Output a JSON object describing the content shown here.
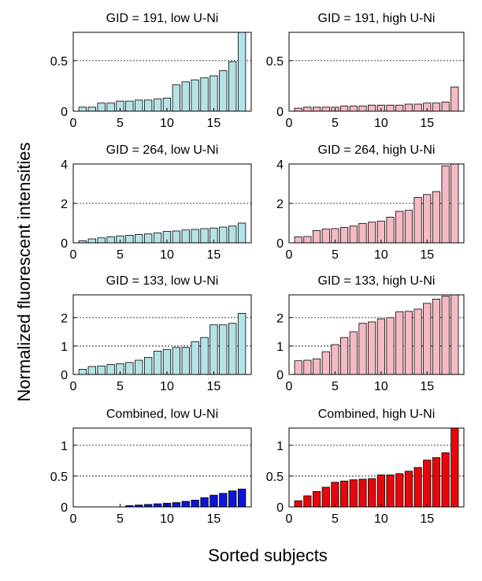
{
  "figure": {
    "ylabel": "Normalized fluorescent intensities",
    "xlabel": "Sorted subjects"
  },
  "chart_data": [
    {
      "type": "bar",
      "title": "GID = 191, low U-Ni",
      "color": "#b3e3e6",
      "x": [
        1,
        2,
        3,
        4,
        5,
        6,
        7,
        8,
        9,
        10,
        11,
        12,
        13,
        14,
        15,
        16,
        17,
        18
      ],
      "values": [
        0.04,
        0.04,
        0.08,
        0.08,
        0.1,
        0.1,
        0.11,
        0.11,
        0.12,
        0.13,
        0.26,
        0.29,
        0.31,
        0.33,
        0.35,
        0.4,
        0.49,
        0.78
      ],
      "xlim": [
        0,
        19
      ],
      "ylim": [
        0,
        0.78
      ],
      "xticks": [
        0,
        5,
        10,
        15
      ],
      "yticks": [
        0,
        0.5
      ],
      "ytick_labels": [
        "0",
        "0.5"
      ],
      "grid_y": [
        0.5
      ]
    },
    {
      "type": "bar",
      "title": "GID = 191, high U-Ni",
      "color": "#f7b9c3",
      "x": [
        1,
        2,
        3,
        4,
        5,
        6,
        7,
        8,
        9,
        10,
        11,
        12,
        13,
        14,
        15,
        16,
        17,
        18
      ],
      "values": [
        0.03,
        0.04,
        0.04,
        0.04,
        0.04,
        0.05,
        0.05,
        0.05,
        0.06,
        0.06,
        0.06,
        0.06,
        0.07,
        0.07,
        0.08,
        0.08,
        0.09,
        0.24
      ],
      "xlim": [
        0,
        19
      ],
      "ylim": [
        0,
        0.78
      ],
      "xticks": [
        0,
        5,
        10,
        15
      ],
      "yticks": [
        0,
        0.5
      ],
      "ytick_labels": [
        "0",
        "0.5"
      ],
      "grid_y": [
        0.5
      ]
    },
    {
      "type": "bar",
      "title": "GID = 264, low U-Ni",
      "color": "#b3e3e6",
      "x": [
        1,
        2,
        3,
        4,
        5,
        6,
        7,
        8,
        9,
        10,
        11,
        12,
        13,
        14,
        15,
        16,
        17,
        18
      ],
      "values": [
        0.1,
        0.2,
        0.25,
        0.3,
        0.35,
        0.38,
        0.42,
        0.45,
        0.5,
        0.58,
        0.6,
        0.65,
        0.68,
        0.72,
        0.75,
        0.8,
        0.85,
        1.0
      ],
      "xlim": [
        0,
        19
      ],
      "ylim": [
        0,
        4
      ],
      "xticks": [
        0,
        5,
        10,
        15
      ],
      "yticks": [
        0,
        2,
        4
      ],
      "ytick_labels": [
        "0",
        "2",
        "4"
      ],
      "grid_y": [
        2,
        4
      ]
    },
    {
      "type": "bar",
      "title": "GID = 264, high U-Ni",
      "color": "#f7b9c3",
      "x": [
        1,
        2,
        3,
        4,
        5,
        6,
        7,
        8,
        9,
        10,
        11,
        12,
        13,
        14,
        15,
        16,
        17,
        18
      ],
      "values": [
        0.3,
        0.32,
        0.62,
        0.7,
        0.72,
        0.78,
        0.85,
        0.98,
        1.05,
        1.1,
        1.3,
        1.6,
        1.65,
        2.3,
        2.45,
        2.6,
        3.9,
        4.1
      ],
      "xlim": [
        0,
        19
      ],
      "ylim": [
        0,
        4
      ],
      "xticks": [
        0,
        5,
        10,
        15
      ],
      "yticks": [
        0,
        2,
        4
      ],
      "ytick_labels": [
        "0",
        "2",
        "4"
      ],
      "grid_y": [
        2,
        4
      ]
    },
    {
      "type": "bar",
      "title": "GID = 133, low U-Ni",
      "color": "#b3e3e6",
      "x": [
        1,
        2,
        3,
        4,
        5,
        6,
        7,
        8,
        9,
        10,
        11,
        12,
        13,
        14,
        15,
        16,
        17,
        18
      ],
      "values": [
        0.18,
        0.28,
        0.3,
        0.35,
        0.38,
        0.42,
        0.5,
        0.6,
        0.82,
        0.88,
        0.95,
        0.95,
        1.15,
        1.3,
        1.75,
        1.75,
        1.8,
        2.15
      ],
      "xlim": [
        0,
        19
      ],
      "ylim": [
        0,
        2.8
      ],
      "xticks": [
        0,
        5,
        10,
        15
      ],
      "yticks": [
        0,
        1,
        2
      ],
      "ytick_labels": [
        "0",
        "1",
        "2"
      ],
      "grid_y": [
        1,
        2
      ]
    },
    {
      "type": "bar",
      "title": "GID = 133, high U-Ni",
      "color": "#f7b9c3",
      "x": [
        1,
        2,
        3,
        4,
        5,
        6,
        7,
        8,
        9,
        10,
        11,
        12,
        13,
        14,
        15,
        16,
        17,
        18
      ],
      "values": [
        0.48,
        0.5,
        0.55,
        0.8,
        1.05,
        1.3,
        1.5,
        1.8,
        1.85,
        1.95,
        2.0,
        2.2,
        2.22,
        2.3,
        2.5,
        2.65,
        2.75,
        2.85
      ],
      "xlim": [
        0,
        19
      ],
      "ylim": [
        0,
        2.8
      ],
      "xticks": [
        0,
        5,
        10,
        15
      ],
      "yticks": [
        0,
        1,
        2
      ],
      "ytick_labels": [
        "0",
        "1",
        "2"
      ],
      "grid_y": [
        1,
        2
      ]
    },
    {
      "type": "bar",
      "title": "Combined, low U-Ni",
      "color": "#0a15d8",
      "x": [
        1,
        2,
        3,
        4,
        5,
        6,
        7,
        8,
        9,
        10,
        11,
        12,
        13,
        14,
        15,
        16,
        17,
        18
      ],
      "values": [
        0,
        0,
        0,
        0,
        0,
        0.02,
        0.03,
        0.04,
        0.05,
        0.06,
        0.07,
        0.09,
        0.11,
        0.15,
        0.19,
        0.22,
        0.26,
        0.29
      ],
      "xlim": [
        0,
        19
      ],
      "ylim": [
        0,
        1.28
      ],
      "xticks": [
        0,
        5,
        10,
        15
      ],
      "yticks": [
        0,
        0.5,
        1
      ],
      "ytick_labels": [
        "0",
        "0.5",
        "1"
      ],
      "grid_y": [
        0.5,
        1
      ]
    },
    {
      "type": "bar",
      "title": "Combined, high U-Ni",
      "color": "#e8060b",
      "x": [
        1,
        2,
        3,
        4,
        5,
        6,
        7,
        8,
        9,
        10,
        11,
        12,
        13,
        14,
        15,
        16,
        17,
        18
      ],
      "values": [
        0.1,
        0.18,
        0.25,
        0.32,
        0.4,
        0.42,
        0.44,
        0.45,
        0.46,
        0.52,
        0.52,
        0.54,
        0.58,
        0.64,
        0.76,
        0.8,
        0.88,
        1.3
      ],
      "xlim": [
        0,
        19
      ],
      "ylim": [
        0,
        1.28
      ],
      "xticks": [
        0,
        5,
        10,
        15
      ],
      "yticks": [
        0,
        0.5,
        1
      ],
      "ytick_labels": [
        "0",
        "0.5",
        "1"
      ],
      "grid_y": [
        0.5,
        1
      ]
    }
  ]
}
